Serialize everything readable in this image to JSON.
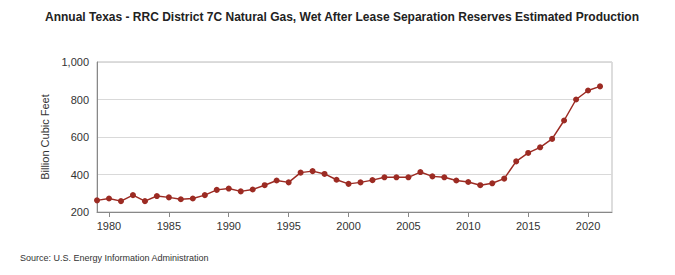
{
  "chart_data": {
    "type": "line",
    "title": "Annual Texas - RRC District 7C Natural Gas, Wet After Lease Separation Reserves Estimated Production",
    "y_label": "Billion Cubic Feet",
    "source": "Source: U.S. Energy Information Administration",
    "x": [
      1979,
      1980,
      1981,
      1982,
      1983,
      1984,
      1985,
      1986,
      1987,
      1988,
      1989,
      1990,
      1991,
      1992,
      1993,
      1994,
      1995,
      1996,
      1997,
      1998,
      1999,
      2000,
      2001,
      2002,
      2003,
      2004,
      2005,
      2006,
      2007,
      2008,
      2009,
      2010,
      2011,
      2012,
      2013,
      2014,
      2015,
      2016,
      2017,
      2018,
      2019,
      2020,
      2021
    ],
    "values": [
      262,
      272,
      258,
      290,
      258,
      285,
      278,
      268,
      272,
      290,
      318,
      325,
      310,
      320,
      343,
      368,
      358,
      410,
      418,
      403,
      372,
      350,
      358,
      370,
      385,
      385,
      385,
      413,
      390,
      385,
      368,
      360,
      343,
      353,
      378,
      470,
      515,
      545,
      590,
      688,
      800,
      848,
      870
    ],
    "color": "#9c2b23",
    "marker": "circle",
    "xlim": [
      1979,
      2022
    ],
    "xticks": [
      1980,
      1985,
      1990,
      1995,
      2000,
      2005,
      2010,
      2015,
      2020
    ],
    "ylim": [
      200,
      1000
    ],
    "yticks": [
      200,
      400,
      600,
      800,
      {
        "value": 1000,
        "label": "1,000"
      }
    ],
    "grid": true
  }
}
